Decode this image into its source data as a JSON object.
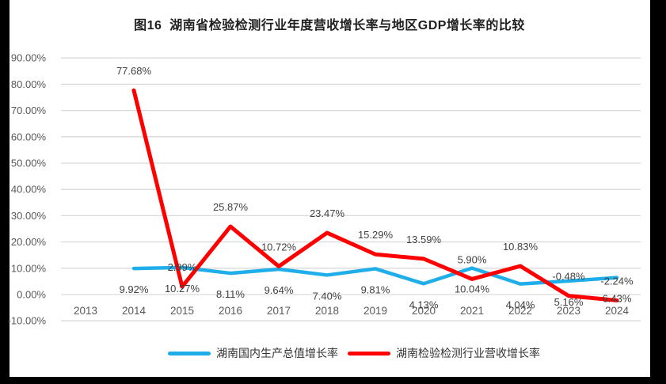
{
  "title": "图16  湖南省检验检测行业年度营收增长率与地区GDP增长率的比较",
  "frame": {
    "bar_color": "#000000"
  },
  "chart_data": {
    "type": "line",
    "title": "图16  湖南省检验检测行业年度营收增长率与地区GDP增长率的比较",
    "categories": [
      "2013",
      "2014",
      "2015",
      "2016",
      "2017",
      "2018",
      "2019",
      "2020",
      "2021",
      "2022",
      "2023",
      "2024"
    ],
    "series": [
      {
        "name": "湖南国内生产总值增长率",
        "color": "#1FAEE9",
        "stroke_width": 4.5,
        "label_position": "below",
        "values": [
          null,
          9.92,
          10.27,
          8.11,
          9.64,
          7.4,
          9.81,
          4.13,
          10.04,
          4.04,
          5.16,
          6.43
        ],
        "labels": [
          null,
          "9.92%",
          "10.27%",
          "8.11%",
          "9.64%",
          "7.40%",
          "9.81%",
          "4.13%",
          "10.04%",
          "4.04%",
          "5.16%",
          "6.43%"
        ]
      },
      {
        "name": "湖南检验检测行业营收增长率",
        "color": "#FE0000",
        "stroke_width": 5,
        "label_position": "above",
        "values": [
          null,
          77.68,
          2.99,
          25.87,
          10.72,
          23.47,
          15.29,
          13.59,
          5.9,
          10.83,
          -0.48,
          -2.24
        ],
        "labels": [
          null,
          "77.68%",
          "2.99%",
          "25.87%",
          "10.72%",
          "23.47%",
          "15.29%",
          "13.59%",
          "5.90%",
          "10.83%",
          "-0.48%",
          "-2.24%"
        ]
      }
    ],
    "y_axis": {
      "ticks": [
        "90.00%",
        "80.00%",
        "70.00%",
        "60.00%",
        "50.00%",
        "40.00%",
        "30.00%",
        "20.00%",
        "10.00%",
        "0.00%",
        "-10.00%"
      ],
      "tick_values": [
        90,
        80,
        70,
        60,
        50,
        40,
        30,
        20,
        10,
        0,
        -10
      ],
      "min": -10,
      "max": 90,
      "grid": true
    },
    "legend_position": "bottom",
    "styles": {
      "gridline_color": "#D9D9D9",
      "tick_label_color": "#595959",
      "data_label_color": "#404040"
    }
  }
}
